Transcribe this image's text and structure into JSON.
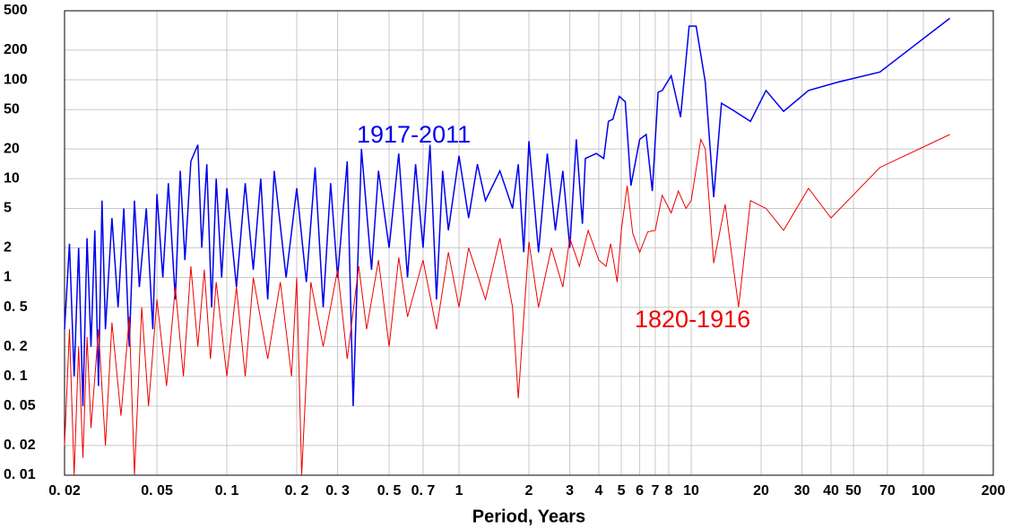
{
  "chart_data": {
    "type": "line",
    "x_label": "Period, Years",
    "log_x": true,
    "log_y": true,
    "grid": true,
    "xlim": [
      0.02,
      200
    ],
    "ylim": [
      0.01,
      500
    ],
    "xticks": [
      {
        "value": 0.02,
        "label": "0. 02"
      },
      {
        "value": 0.05,
        "label": "0. 05"
      },
      {
        "value": 0.1,
        "label": "0. 1"
      },
      {
        "value": 0.2,
        "label": "0. 2"
      },
      {
        "value": 0.3,
        "label": "0. 3"
      },
      {
        "value": 0.5,
        "label": "0. 5"
      },
      {
        "value": 0.7,
        "label": "0. 7"
      },
      1,
      2,
      3,
      4,
      5,
      6,
      7,
      8,
      10,
      20,
      30,
      40,
      50,
      70,
      100,
      200
    ],
    "yticks": [
      {
        "value": 0.01,
        "label": "0. 01"
      },
      {
        "value": 0.02,
        "label": "0. 02"
      },
      {
        "value": 0.05,
        "label": "0. 05"
      },
      {
        "value": 0.1,
        "label": "0. 1"
      },
      {
        "value": 0.2,
        "label": "0. 2"
      },
      {
        "value": 0.5,
        "label": "0. 5"
      },
      1,
      2,
      5,
      10,
      20,
      50,
      100,
      200,
      500
    ],
    "series": [
      {
        "name": "1917-2011",
        "color": "#0000ee",
        "x": [
          0.02,
          0.021,
          0.022,
          0.023,
          0.024,
          0.025,
          0.026,
          0.027,
          0.028,
          0.029,
          0.03,
          0.032,
          0.034,
          0.036,
          0.038,
          0.04,
          0.042,
          0.045,
          0.048,
          0.05,
          0.053,
          0.056,
          0.06,
          0.063,
          0.066,
          0.07,
          0.075,
          0.078,
          0.082,
          0.086,
          0.09,
          0.095,
          0.1,
          0.11,
          0.12,
          0.13,
          0.14,
          0.15,
          0.16,
          0.18,
          0.2,
          0.22,
          0.24,
          0.26,
          0.28,
          0.3,
          0.33,
          0.35,
          0.38,
          0.42,
          0.45,
          0.5,
          0.55,
          0.6,
          0.65,
          0.7,
          0.75,
          0.8,
          0.85,
          0.9,
          1,
          1.1,
          1.2,
          1.3,
          1.5,
          1.7,
          1.8,
          1.9,
          2,
          2.2,
          2.4,
          2.6,
          2.8,
          3,
          3.2,
          3.4,
          3.5,
          3.7,
          3.9,
          4.2,
          4.4,
          4.6,
          4.9,
          5.2,
          5.5,
          6,
          6.4,
          6.8,
          7.2,
          7.5,
          8.2,
          9,
          9.8,
          10.5,
          11.5,
          12.5,
          13.5,
          15,
          18,
          21,
          25,
          32,
          43,
          65,
          130
        ],
        "values": [
          0.3,
          2.2,
          0.1,
          2,
          0.05,
          2.5,
          0.2,
          3,
          0.08,
          6,
          0.3,
          4,
          0.5,
          5,
          0.2,
          6,
          0.8,
          5,
          0.3,
          7,
          1,
          9,
          0.6,
          12,
          1.5,
          15,
          22,
          2,
          14,
          0.5,
          10,
          1,
          8,
          0.8,
          9,
          1.2,
          10,
          0.6,
          12,
          1,
          8,
          0.9,
          13,
          0.5,
          9,
          1,
          15,
          0.05,
          20,
          1.2,
          12,
          2,
          18,
          1,
          14,
          2,
          22,
          0.6,
          12,
          3,
          17,
          4,
          14,
          6,
          12,
          5,
          14,
          1.8,
          24,
          1.8,
          18,
          3,
          12,
          2,
          25,
          3.5,
          16,
          17,
          18,
          16,
          38,
          40,
          68,
          60,
          8.5,
          25,
          28,
          7.5,
          75,
          78,
          110,
          42,
          350,
          350,
          95,
          6.5,
          58,
          50,
          38,
          78,
          48,
          78,
          95,
          120,
          420
        ]
      },
      {
        "name": "1820-1916",
        "color": "#ee0000",
        "x": [
          0.02,
          0.021,
          0.022,
          0.023,
          0.024,
          0.025,
          0.026,
          0.028,
          0.03,
          0.032,
          0.035,
          0.038,
          0.04,
          0.043,
          0.046,
          0.05,
          0.055,
          0.06,
          0.065,
          0.07,
          0.075,
          0.08,
          0.085,
          0.09,
          0.1,
          0.11,
          0.12,
          0.13,
          0.15,
          0.17,
          0.19,
          0.2,
          0.21,
          0.23,
          0.26,
          0.3,
          0.33,
          0.37,
          0.4,
          0.45,
          0.5,
          0.55,
          0.6,
          0.7,
          0.8,
          0.9,
          1,
          1.1,
          1.3,
          1.5,
          1.7,
          1.8,
          2,
          2.2,
          2.5,
          2.8,
          3,
          3.3,
          3.6,
          4,
          4.3,
          4.5,
          4.8,
          5,
          5.3,
          5.6,
          6,
          6.5,
          7,
          7.5,
          8.2,
          8.8,
          9.5,
          10,
          11,
          11.5,
          12.5,
          14,
          16,
          18,
          21,
          25,
          32,
          40,
          65,
          130
        ],
        "values": [
          0.02,
          0.3,
          0.01,
          0.2,
          0.015,
          0.25,
          0.03,
          0.3,
          0.02,
          0.35,
          0.04,
          0.4,
          0.01,
          0.5,
          0.05,
          0.6,
          0.08,
          0.8,
          0.1,
          1.3,
          0.2,
          1.2,
          0.15,
          0.9,
          0.1,
          0.8,
          0.1,
          1,
          0.15,
          0.9,
          0.1,
          1,
          0.01,
          0.9,
          0.2,
          1.2,
          0.15,
          1.3,
          0.3,
          1.5,
          0.2,
          1.6,
          0.4,
          1.5,
          0.3,
          1.8,
          0.5,
          2,
          0.6,
          2.5,
          0.5,
          0.06,
          2.3,
          0.5,
          2,
          0.8,
          2.5,
          1.3,
          3,
          1.5,
          1.3,
          2.2,
          0.9,
          3,
          8.5,
          2.8,
          1.8,
          2.9,
          3,
          6.8,
          4.5,
          7.5,
          5,
          6,
          25,
          20,
          1.4,
          5.5,
          0.5,
          6,
          5,
          3,
          8,
          4,
          13,
          28
        ]
      }
    ]
  }
}
